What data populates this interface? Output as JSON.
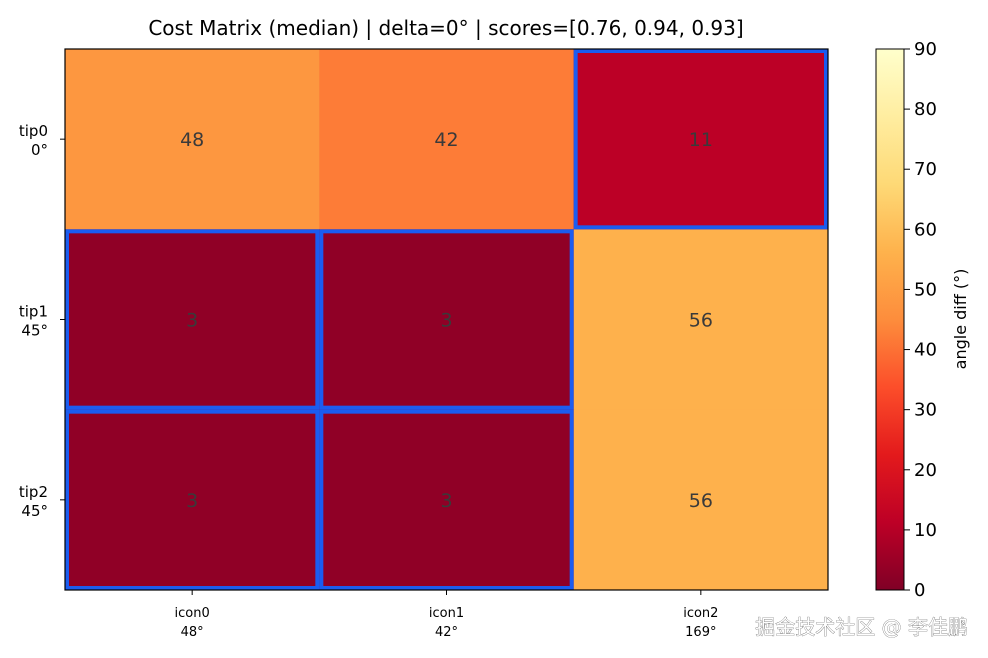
{
  "chart_data": {
    "type": "heatmap",
    "title": "Cost Matrix (median) | delta=0° | scores=[0.76, 0.94, 0.93]",
    "x_labels": [
      {
        "line1": "icon0",
        "line2": "48°"
      },
      {
        "line1": "icon1",
        "line2": "42°"
      },
      {
        "line1": "icon2",
        "line2": "169°"
      }
    ],
    "y_labels": [
      {
        "line1": "tip0",
        "line2": "0°"
      },
      {
        "line1": "tip1",
        "line2": "45°"
      },
      {
        "line1": "tip2",
        "line2": "45°"
      }
    ],
    "values": [
      [
        48,
        42,
        11
      ],
      [
        3,
        3,
        56
      ],
      [
        3,
        3,
        56
      ]
    ],
    "highlighted_cells": [
      [
        0,
        2
      ],
      [
        1,
        0
      ],
      [
        1,
        1
      ],
      [
        2,
        0
      ],
      [
        2,
        1
      ]
    ],
    "highlight_color": "#1b5cf0",
    "colormap": "YlOrRd_r",
    "vmin": 0,
    "vmax": 90,
    "colorbar": {
      "label": "angle diff (°)",
      "ticks": [
        0,
        10,
        20,
        30,
        40,
        50,
        60,
        70,
        80,
        90
      ]
    }
  },
  "watermark": "掘金技术社区 @ 李佳鹏"
}
